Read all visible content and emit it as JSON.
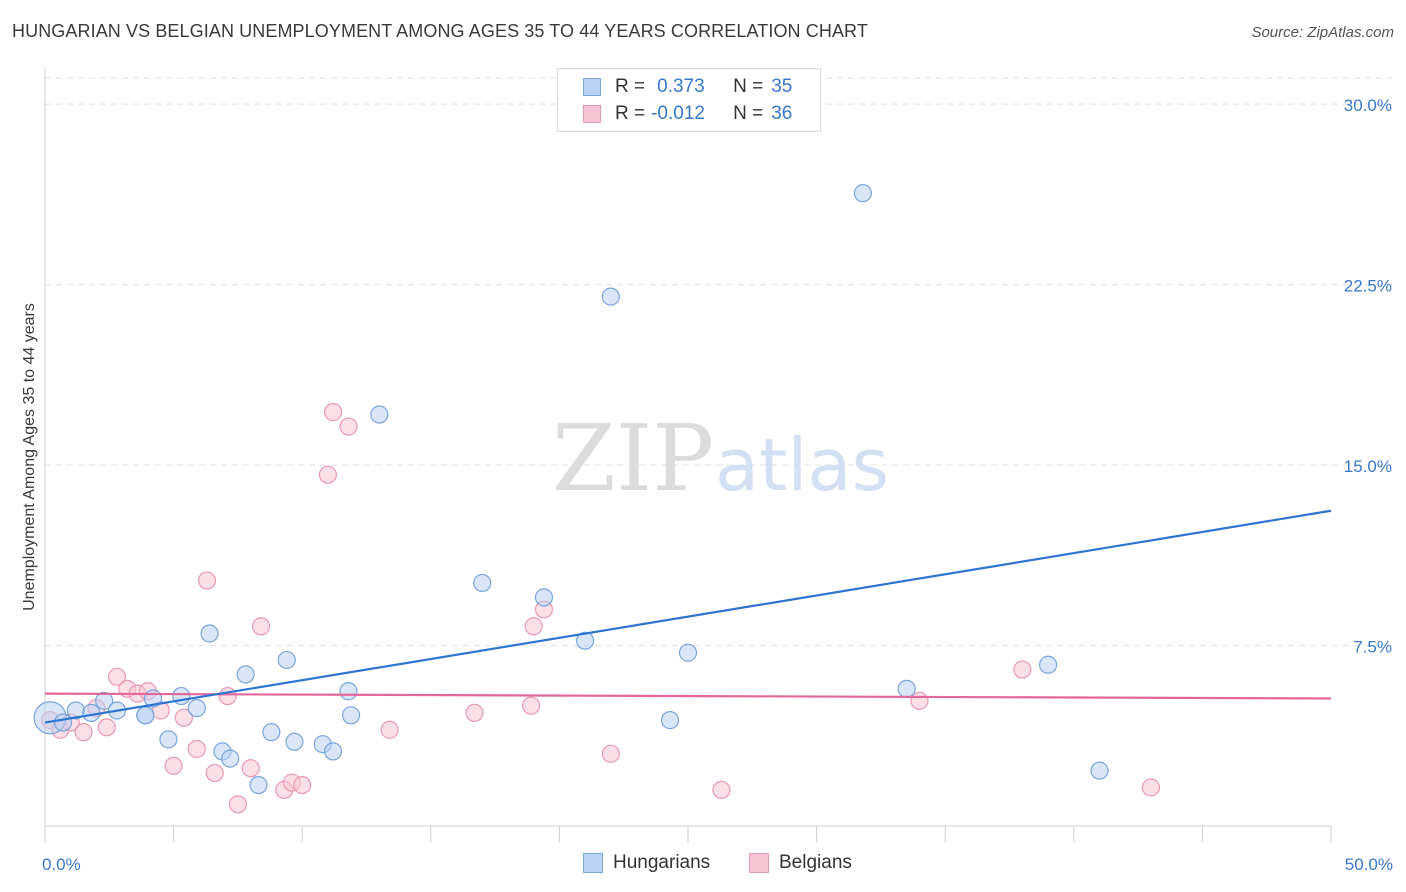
{
  "title": "HUNGARIAN VS BELGIAN UNEMPLOYMENT AMONG AGES 35 TO 44 YEARS CORRELATION CHART",
  "source": "Source: ZipAtlas.com",
  "watermark": {
    "zip": "ZIP",
    "atlas": "atlas"
  },
  "legend": {
    "hungarians": {
      "r_label": "R =",
      "r_value": "0.373",
      "n_label": "N =",
      "n_value": "35"
    },
    "belgians": {
      "r_label": "R =",
      "r_value": "-0.012",
      "n_label": "N =",
      "n_value": "36"
    }
  },
  "bottom_legend": {
    "hungarians": "Hungarians",
    "belgians": "Belgians"
  },
  "colors": {
    "blue_fill": "#b9d1f2",
    "blue_stroke": "#7aa5dc",
    "blue_line": "#2f74d0",
    "pink_fill": "#f7c4d4",
    "pink_stroke": "#e79ab2",
    "pink_line": "#e2679a",
    "grid": "#e0e0e0",
    "tick_label": "#3a78c9"
  },
  "chart_data": {
    "type": "scatter",
    "title": "HUNGARIAN VS BELGIAN UNEMPLOYMENT AMONG AGES 35 TO 44 YEARS CORRELATION CHART",
    "xlabel": "",
    "ylabel": "Unemployment Among Ages 35 to 44 years",
    "xlim": [
      0,
      50
    ],
    "ylim": [
      0,
      31.5
    ],
    "x_tick_labels": [
      "0.0%",
      "50.0%"
    ],
    "y_ticks": [
      7.5,
      15.0,
      22.5,
      30.0
    ],
    "y_tick_labels": [
      "7.5%",
      "15.0%",
      "22.5%",
      "30.0%"
    ],
    "grid": true,
    "legend_position": "top-center",
    "series": [
      {
        "name": "Hungarians",
        "r": 0.373,
        "n": 35,
        "trend": {
          "x": [
            0,
            50
          ],
          "y": [
            4.3,
            13.1
          ]
        },
        "points": [
          [
            0.2,
            4.5
          ],
          [
            0.7,
            4.3
          ],
          [
            1.2,
            4.8
          ],
          [
            1.8,
            4.7
          ],
          [
            2.3,
            5.2
          ],
          [
            2.8,
            4.8
          ],
          [
            3.9,
            4.6
          ],
          [
            3.9,
            4.6
          ],
          [
            4.2,
            5.3
          ],
          [
            4.8,
            3.6
          ],
          [
            5.3,
            5.4
          ],
          [
            5.9,
            4.9
          ],
          [
            6.4,
            8.0
          ],
          [
            6.9,
            3.1
          ],
          [
            7.2,
            2.8
          ],
          [
            7.8,
            6.3
          ],
          [
            8.3,
            1.7
          ],
          [
            8.8,
            3.9
          ],
          [
            9.4,
            6.9
          ],
          [
            9.7,
            3.5
          ],
          [
            10.8,
            3.4
          ],
          [
            11.2,
            3.1
          ],
          [
            11.8,
            5.6
          ],
          [
            11.9,
            4.6
          ],
          [
            13.0,
            17.1
          ],
          [
            17.0,
            10.1
          ],
          [
            19.4,
            9.5
          ],
          [
            21.0,
            7.7
          ],
          [
            22.0,
            22.0
          ],
          [
            24.3,
            4.4
          ],
          [
            25.0,
            7.2
          ],
          [
            31.8,
            26.3
          ],
          [
            33.5,
            5.7
          ],
          [
            39.0,
            6.7
          ],
          [
            41.0,
            2.3
          ]
        ]
      },
      {
        "name": "Belgians",
        "r": -0.012,
        "n": 36,
        "trend": {
          "x": [
            0,
            50
          ],
          "y": [
            5.5,
            5.3
          ]
        },
        "points": [
          [
            0.2,
            4.4
          ],
          [
            0.6,
            4.0
          ],
          [
            1.0,
            4.3
          ],
          [
            1.5,
            3.9
          ],
          [
            2.0,
            4.9
          ],
          [
            2.4,
            4.1
          ],
          [
            2.8,
            6.2
          ],
          [
            3.2,
            5.7
          ],
          [
            3.6,
            5.5
          ],
          [
            4.0,
            5.6
          ],
          [
            4.5,
            4.8
          ],
          [
            5.0,
            2.5
          ],
          [
            5.4,
            4.5
          ],
          [
            5.9,
            3.2
          ],
          [
            6.3,
            10.2
          ],
          [
            6.6,
            2.2
          ],
          [
            7.1,
            5.4
          ],
          [
            7.5,
            0.9
          ],
          [
            8.0,
            2.4
          ],
          [
            8.4,
            8.3
          ],
          [
            9.3,
            1.5
          ],
          [
            9.6,
            1.8
          ],
          [
            10.0,
            1.7
          ],
          [
            11.0,
            14.6
          ],
          [
            11.2,
            17.2
          ],
          [
            11.8,
            16.6
          ],
          [
            13.4,
            4.0
          ],
          [
            16.7,
            4.7
          ],
          [
            18.9,
            5.0
          ],
          [
            19.0,
            8.3
          ],
          [
            19.4,
            9.0
          ],
          [
            22.0,
            3.0
          ],
          [
            26.3,
            1.5
          ],
          [
            34.0,
            5.2
          ],
          [
            38.0,
            6.5
          ],
          [
            43.0,
            1.6
          ]
        ]
      }
    ]
  }
}
